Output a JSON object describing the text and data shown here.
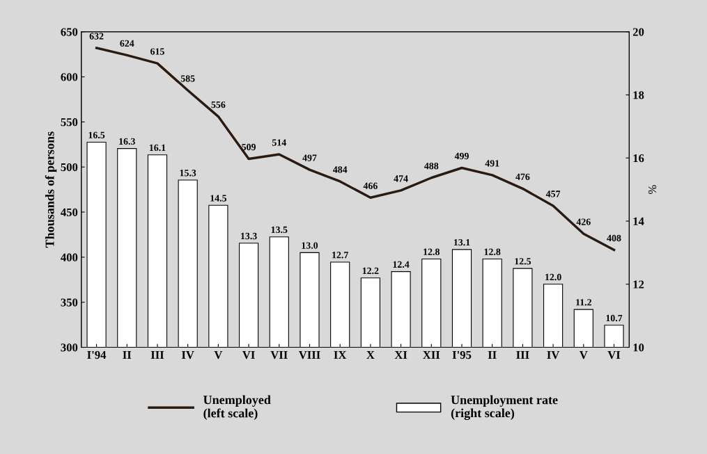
{
  "chart_data": {
    "type": "bar",
    "ylabel": "Thousands of persons",
    "y2label": "%",
    "categories": [
      "I'94",
      "II",
      "III",
      "IV",
      "V",
      "VI",
      "VII",
      "VIII",
      "IX",
      "X",
      "XI",
      "XII",
      "I'95",
      "II",
      "III",
      "IV",
      "V",
      "VI"
    ],
    "series": [
      {
        "name": "Unemployed\n(left scale)",
        "type": "line",
        "axis": "y",
        "color": "#2b1a10",
        "values": [
          632,
          624,
          615,
          585,
          556,
          509,
          514,
          497,
          484,
          466,
          474,
          488,
          499,
          491,
          476,
          457,
          426,
          408
        ]
      },
      {
        "name": "Unemployment rate\n(right scale)",
        "axis": "y2",
        "color": "#ffffff",
        "values": [
          16.5,
          16.3,
          16.1,
          15.3,
          14.5,
          13.3,
          13.5,
          13.0,
          12.7,
          12.2,
          12.4,
          12.8,
          13.1,
          12.8,
          12.5,
          12.0,
          11.2,
          10.7
        ],
        "value_labels": [
          "16.5",
          "16.3",
          "16.1",
          "15.3",
          "14.5",
          "13.3",
          "13.5",
          "13.0",
          "12.7",
          "12.2",
          "12.4",
          "12.8",
          "13.1",
          "12.8",
          "12.5",
          "12.0",
          "11.2",
          "10.7"
        ]
      }
    ],
    "ylim": [
      300,
      650
    ],
    "yticks": [
      300,
      350,
      400,
      450,
      500,
      550,
      600,
      650
    ],
    "y2lim": [
      10,
      20
    ],
    "y2ticks": [
      10,
      12,
      14,
      16,
      18,
      20
    ],
    "data_labels": true,
    "legend": "bottom",
    "marker": "none",
    "line_style": "solid"
  }
}
